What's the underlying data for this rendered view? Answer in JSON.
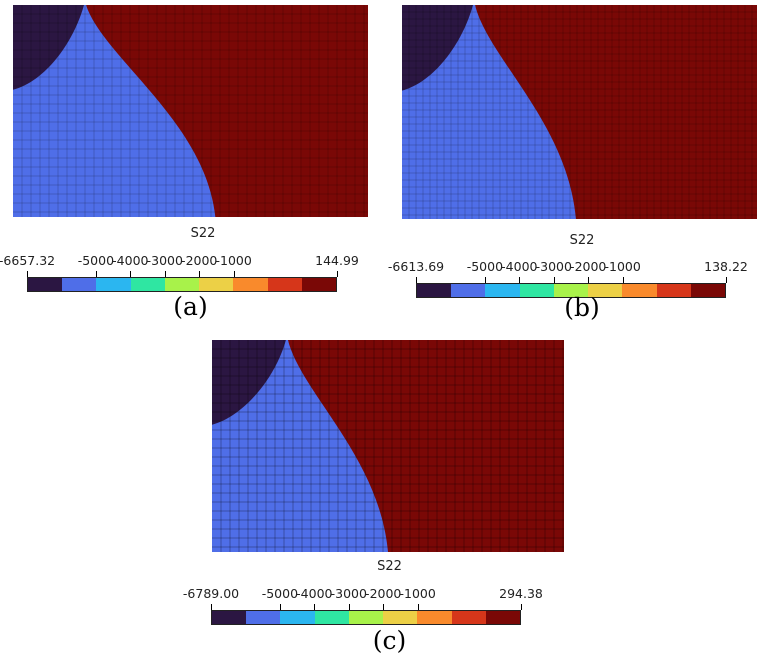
{
  "colormap": [
    "#2b1642",
    "#4f6ee8",
    "#2bb6f0",
    "#2fe6a2",
    "#a8f24a",
    "#ecd046",
    "#f98a2c",
    "#d6361a",
    "#7a0806"
  ],
  "panels": [
    {
      "caption": "(a)",
      "variable": "S22",
      "ticks": [
        "-6657.32",
        "-5000",
        "-4000",
        "-3000",
        "-2000",
        "-1000",
        "144.99"
      ],
      "mesh": "polygonal"
    },
    {
      "caption": "(b)",
      "variable": "S22",
      "ticks": [
        "-6613.69",
        "-5000",
        "-4000",
        "-3000",
        "-2000",
        "-1000",
        "138.22"
      ],
      "mesh": "polygonal-fine"
    },
    {
      "caption": "(c)",
      "variable": "S22",
      "ticks": [
        "-6789.00",
        "-5000",
        "-4000",
        "-3000",
        "-2000",
        "-1000",
        "294.38"
      ],
      "mesh": "quadrilateral"
    }
  ]
}
